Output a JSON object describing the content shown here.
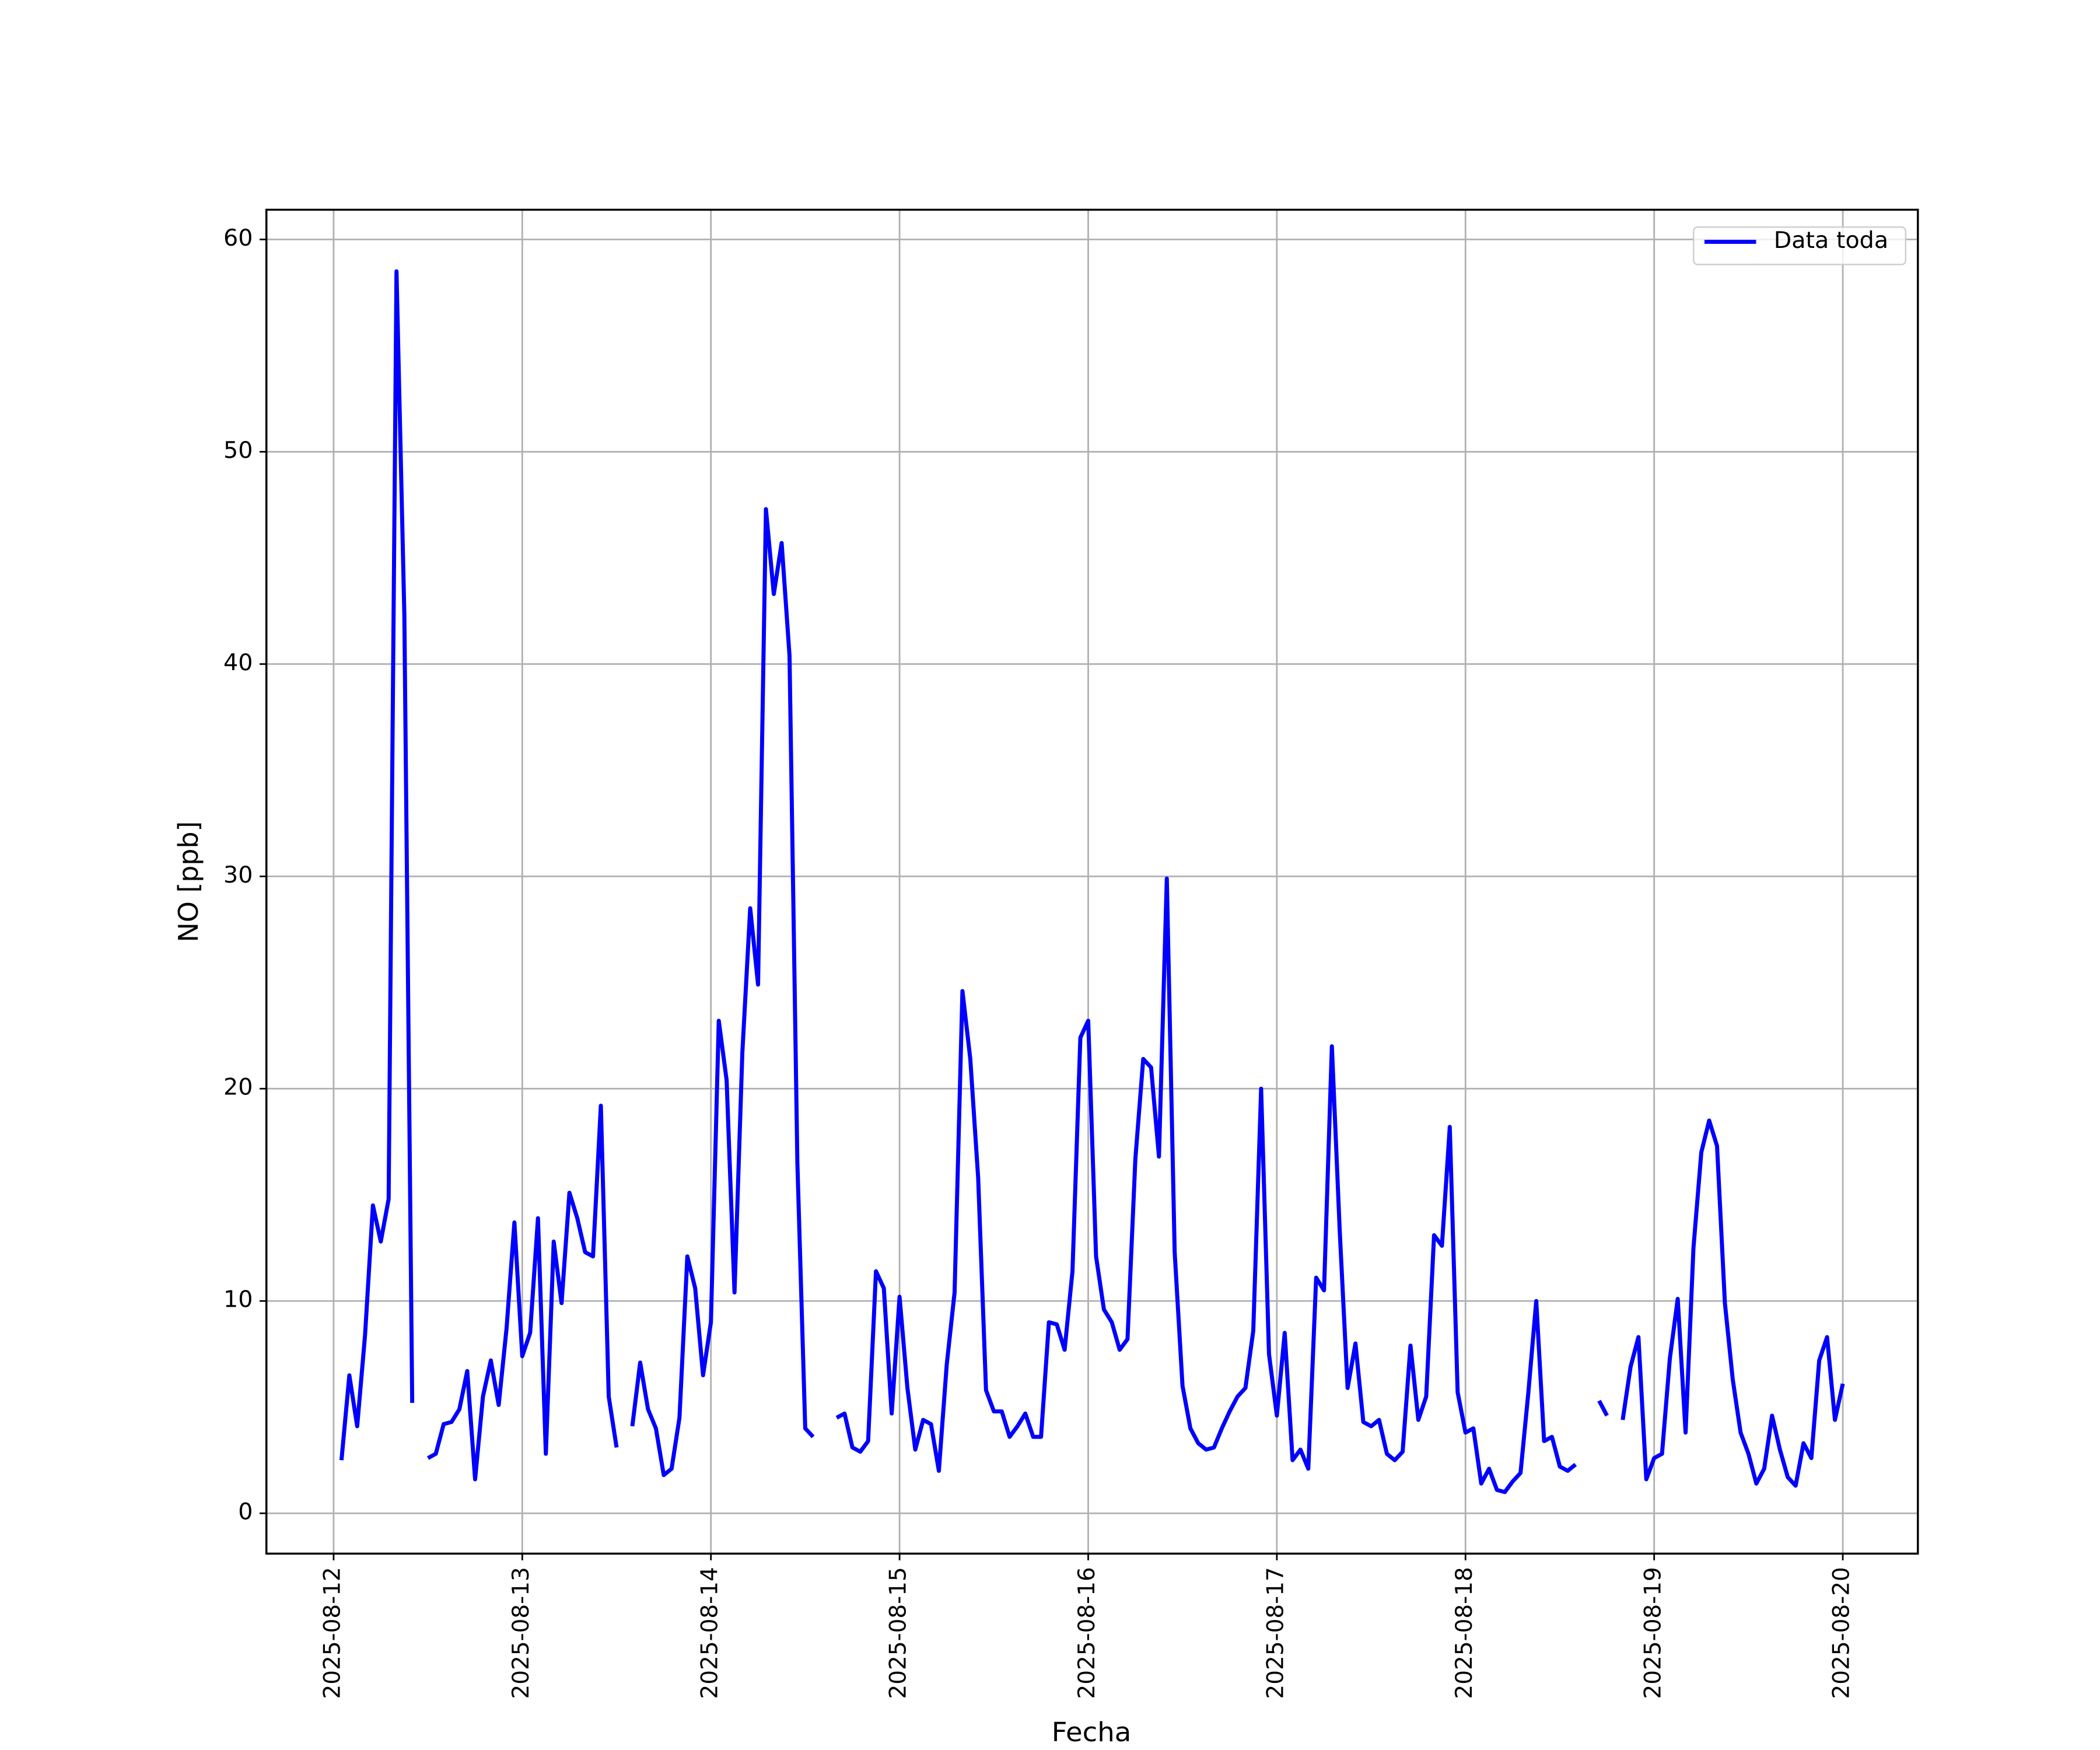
{
  "chart_data": {
    "type": "line",
    "xlabel": "Fecha",
    "ylabel": "NO [ppb]",
    "xlim": [
      "2025-08-11 15:27",
      "2025-08-20 09:33"
    ],
    "xticks": [
      "2025-08-12",
      "2025-08-13",
      "2025-08-14",
      "2025-08-15",
      "2025-08-16",
      "2025-08-17",
      "2025-08-18",
      "2025-08-19",
      "2025-08-20"
    ],
    "ylim": [
      -1.9,
      61.4
    ],
    "yticks": [
      0,
      10,
      20,
      30,
      40,
      50,
      60
    ],
    "grid": true,
    "legend": "upper right",
    "x": [
      "2025-08-12 01:00",
      "2025-08-12 02:00",
      "2025-08-12 03:00",
      "2025-08-12 04:00",
      "2025-08-12 05:00",
      "2025-08-12 06:00",
      "2025-08-12 07:00",
      "2025-08-12 08:00",
      "2025-08-12 09:00",
      "2025-08-12 10:00",
      "2025-08-12 11:00",
      "2025-08-12 12:00",
      "2025-08-12 13:00",
      "2025-08-12 14:00",
      "2025-08-12 15:00",
      "2025-08-12 16:00",
      "2025-08-12 17:00",
      "2025-08-12 18:00",
      "2025-08-12 19:00",
      "2025-08-12 20:00",
      "2025-08-12 21:00",
      "2025-08-12 22:00",
      "2025-08-12 23:00",
      "2025-08-13 00:00",
      "2025-08-13 01:00",
      "2025-08-13 02:00",
      "2025-08-13 03:00",
      "2025-08-13 04:00",
      "2025-08-13 05:00",
      "2025-08-13 06:00",
      "2025-08-13 07:00",
      "2025-08-13 08:00",
      "2025-08-13 09:00",
      "2025-08-13 10:00",
      "2025-08-13 11:00",
      "2025-08-13 12:00",
      "2025-08-13 13:00",
      "2025-08-13 14:00",
      "2025-08-13 15:00",
      "2025-08-13 16:00",
      "2025-08-13 17:00",
      "2025-08-13 18:00",
      "2025-08-13 19:00",
      "2025-08-13 20:00",
      "2025-08-13 21:00",
      "2025-08-13 22:00",
      "2025-08-13 23:00",
      "2025-08-14 00:00",
      "2025-08-14 01:00",
      "2025-08-14 02:00",
      "2025-08-14 03:00",
      "2025-08-14 04:00",
      "2025-08-14 05:00",
      "2025-08-14 06:00",
      "2025-08-14 07:00",
      "2025-08-14 08:00",
      "2025-08-14 09:00",
      "2025-08-14 10:00",
      "2025-08-14 11:00",
      "2025-08-14 12:00",
      "2025-08-14 13:00",
      "2025-08-14 14:00",
      "2025-08-14 15:00",
      "2025-08-14 16:00",
      "2025-08-14 17:00",
      "2025-08-14 18:00",
      "2025-08-14 19:00",
      "2025-08-14 20:00",
      "2025-08-14 21:00",
      "2025-08-14 22:00",
      "2025-08-14 23:00",
      "2025-08-15 00:00",
      "2025-08-15 01:00",
      "2025-08-15 02:00",
      "2025-08-15 03:00",
      "2025-08-15 04:00",
      "2025-08-15 05:00",
      "2025-08-15 06:00",
      "2025-08-15 07:00",
      "2025-08-15 08:00",
      "2025-08-15 09:00",
      "2025-08-15 10:00",
      "2025-08-15 11:00",
      "2025-08-15 12:00",
      "2025-08-15 13:00",
      "2025-08-15 14:00",
      "2025-08-15 15:00",
      "2025-08-15 16:00",
      "2025-08-15 17:00",
      "2025-08-15 18:00",
      "2025-08-15 19:00",
      "2025-08-15 20:00",
      "2025-08-15 21:00",
      "2025-08-15 22:00",
      "2025-08-15 23:00",
      "2025-08-16 00:00",
      "2025-08-16 01:00",
      "2025-08-16 02:00",
      "2025-08-16 03:00",
      "2025-08-16 04:00",
      "2025-08-16 05:00",
      "2025-08-16 06:00",
      "2025-08-16 07:00",
      "2025-08-16 08:00",
      "2025-08-16 09:00",
      "2025-08-16 10:00",
      "2025-08-16 11:00",
      "2025-08-16 12:00",
      "2025-08-16 13:00",
      "2025-08-16 14:00",
      "2025-08-16 15:00",
      "2025-08-16 16:00",
      "2025-08-16 17:00",
      "2025-08-16 18:00",
      "2025-08-16 19:00",
      "2025-08-16 20:00",
      "2025-08-16 21:00",
      "2025-08-16 22:00",
      "2025-08-16 23:00",
      "2025-08-17 00:00",
      "2025-08-17 01:00",
      "2025-08-17 02:00",
      "2025-08-17 03:00",
      "2025-08-17 04:00",
      "2025-08-17 05:00",
      "2025-08-17 06:00",
      "2025-08-17 07:00",
      "2025-08-17 08:00",
      "2025-08-17 09:00",
      "2025-08-17 10:00",
      "2025-08-17 11:00",
      "2025-08-17 12:00",
      "2025-08-17 13:00",
      "2025-08-17 14:00",
      "2025-08-17 15:00",
      "2025-08-17 16:00",
      "2025-08-17 17:00",
      "2025-08-17 18:00",
      "2025-08-17 19:00",
      "2025-08-17 20:00",
      "2025-08-17 21:00",
      "2025-08-17 22:00",
      "2025-08-17 23:00",
      "2025-08-18 00:00",
      "2025-08-18 01:00",
      "2025-08-18 02:00",
      "2025-08-18 03:00",
      "2025-08-18 04:00",
      "2025-08-18 05:00",
      "2025-08-18 06:00",
      "2025-08-18 07:00",
      "2025-08-18 08:00",
      "2025-08-18 09:00",
      "2025-08-18 10:00",
      "2025-08-18 11:00",
      "2025-08-18 12:00",
      "2025-08-18 13:00",
      "2025-08-18 14:00",
      "2025-08-18 15:00",
      "2025-08-18 16:00",
      "2025-08-18 17:00",
      "2025-08-18 18:00",
      "2025-08-18 19:00",
      "2025-08-18 20:00",
      "2025-08-18 21:00",
      "2025-08-18 22:00",
      "2025-08-18 23:00",
      "2025-08-19 00:00",
      "2025-08-19 01:00",
      "2025-08-19 02:00",
      "2025-08-19 03:00",
      "2025-08-19 04:00",
      "2025-08-19 05:00",
      "2025-08-19 06:00",
      "2025-08-19 07:00",
      "2025-08-19 08:00",
      "2025-08-19 09:00",
      "2025-08-19 10:00",
      "2025-08-19 11:00",
      "2025-08-19 12:00",
      "2025-08-19 13:00",
      "2025-08-19 14:00",
      "2025-08-19 15:00",
      "2025-08-19 16:00",
      "2025-08-19 17:00",
      "2025-08-19 18:00",
      "2025-08-19 19:00",
      "2025-08-19 20:00",
      "2025-08-19 21:00",
      "2025-08-19 22:00",
      "2025-08-19 23:00",
      "2025-08-20 00:00"
    ],
    "series": [
      {
        "name": "Data toda",
        "color": "#0000ff",
        "values": [
          2.5,
          6.5,
          4.1,
          8.4,
          14.5,
          12.8,
          14.8,
          58.5,
          42.3,
          5.2,
          null,
          2.6,
          2.8,
          4.2,
          4.3,
          4.9,
          6.7,
          1.6,
          5.5,
          7.2,
          5.1,
          8.7,
          13.7,
          7.4,
          8.5,
          13.9,
          2.8,
          12.8,
          9.9,
          15.1,
          13.9,
          12.3,
          12.1,
          19.2,
          5.5,
          3.1,
          null,
          4.1,
          7.1,
          4.9,
          4.0,
          1.8,
          2.1,
          4.5,
          12.1,
          10.6,
          6.5,
          9.0,
          23.2,
          20.4,
          10.4,
          21.7,
          28.5,
          24.9,
          47.3,
          43.3,
          45.7,
          40.4,
          16.5,
          4.0,
          3.6,
          null,
          null,
          4.5,
          4.7,
          3.1,
          2.9,
          3.4,
          11.4,
          10.6,
          4.7,
          10.2,
          5.9,
          3.0,
          4.4,
          4.2,
          2.0,
          7.0,
          10.4,
          24.6,
          21.4,
          15.8,
          5.8,
          4.8,
          4.8,
          3.6,
          4.1,
          4.7,
          3.6,
          3.6,
          9.0,
          8.9,
          7.7,
          11.4,
          22.4,
          23.2,
          12.1,
          9.6,
          9.0,
          7.7,
          8.2,
          16.7,
          21.4,
          21.0,
          16.8,
          29.9,
          12.3,
          6.0,
          4.0,
          3.3,
          3.0,
          3.1,
          4.0,
          4.8,
          5.5,
          5.9,
          8.6,
          20.0,
          7.5,
          4.6,
          8.5,
          2.5,
          3.0,
          2.1,
          11.1,
          10.5,
          22.0,
          13.3,
          5.9,
          8.0,
          4.3,
          4.1,
          4.4,
          2.8,
          2.5,
          2.9,
          7.9,
          4.4,
          5.5,
          13.1,
          12.6,
          18.2,
          5.7,
          3.8,
          4.0,
          1.4,
          2.1,
          1.1,
          1.0,
          1.5,
          1.9,
          5.7,
          10.0,
          3.4,
          3.6,
          2.2,
          2.0,
          2.3,
          null,
          null,
          5.3,
          4.6,
          null,
          4.4,
          6.9,
          8.3,
          1.6,
          2.6,
          2.8,
          7.3,
          10.1,
          3.8,
          12.5,
          17.0,
          18.5,
          17.3,
          9.9,
          6.3,
          3.8,
          2.8,
          1.4,
          2.1,
          4.6,
          3.0,
          1.7,
          1.3,
          3.3,
          2.6,
          7.2,
          8.3,
          4.4,
          6.1
        ]
      }
    ]
  }
}
